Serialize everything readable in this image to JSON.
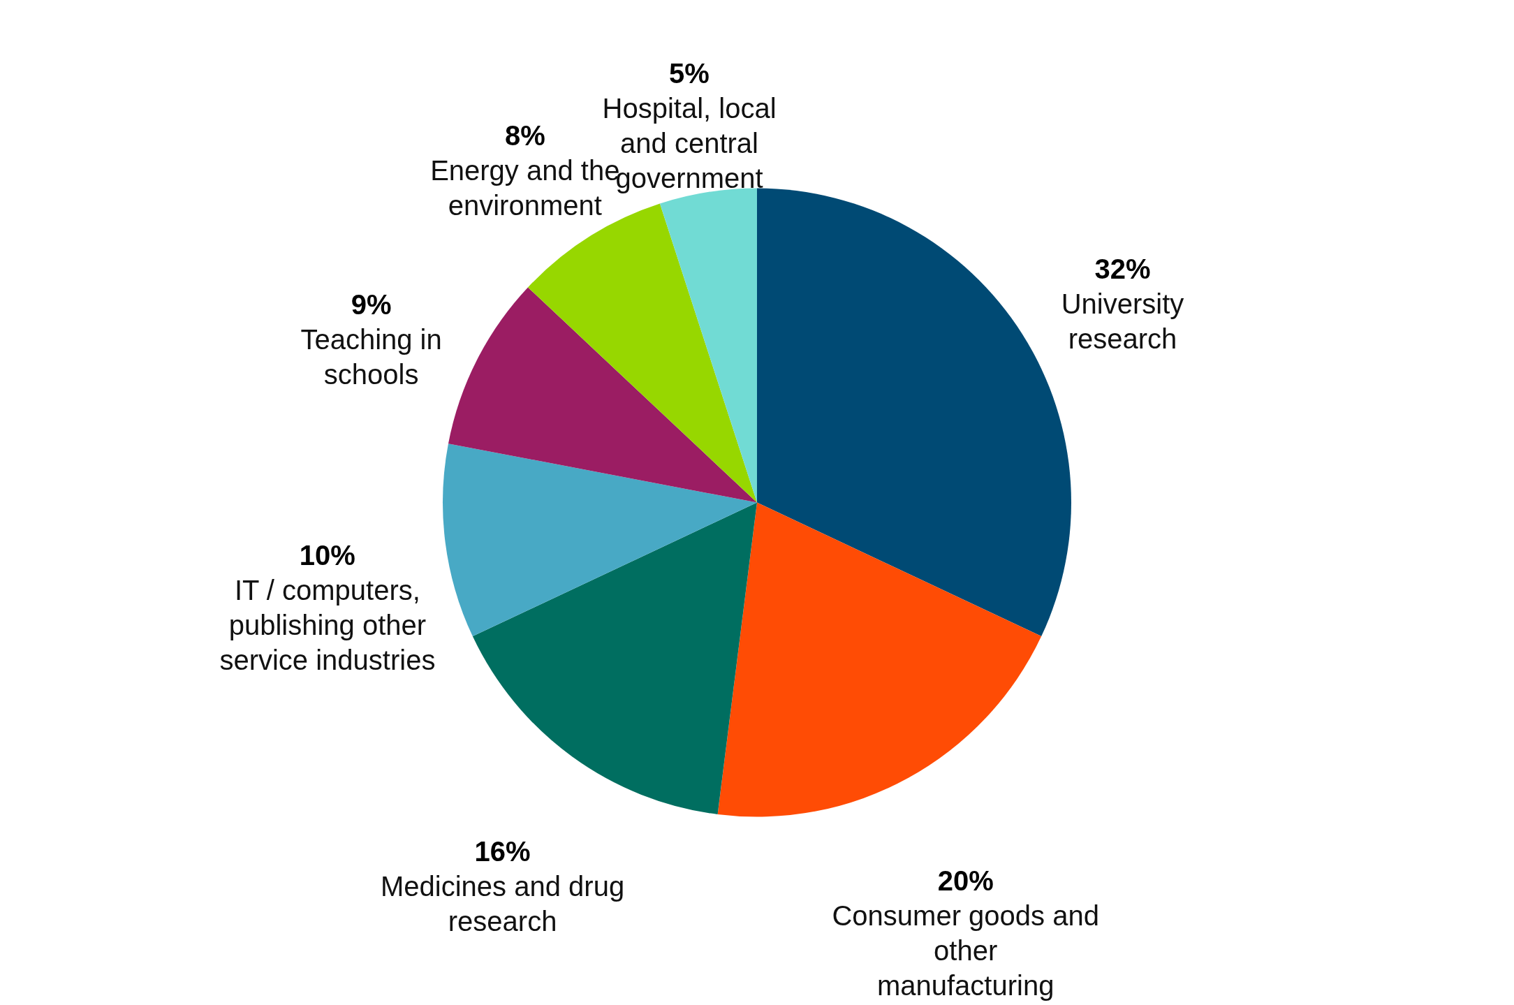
{
  "chart_data": {
    "type": "pie",
    "categories": [
      "University research",
      "Consumer goods and other manufacturing",
      "Medicines and drug research",
      "IT / computers, publishing other service industries",
      "Teaching in schools",
      "Energy and the environment",
      "Hospital, local and central government"
    ],
    "values": [
      32,
      20,
      16,
      10,
      9,
      8,
      5
    ],
    "value_labels": [
      "32%",
      "20%",
      "16%",
      "10%",
      "9%",
      "8%",
      "5%"
    ],
    "colors": [
      "#004a74",
      "#ff4c05",
      "#006e60",
      "#48a9c5",
      "#9b1d63",
      "#97d700",
      "#71dbd4"
    ]
  }
}
